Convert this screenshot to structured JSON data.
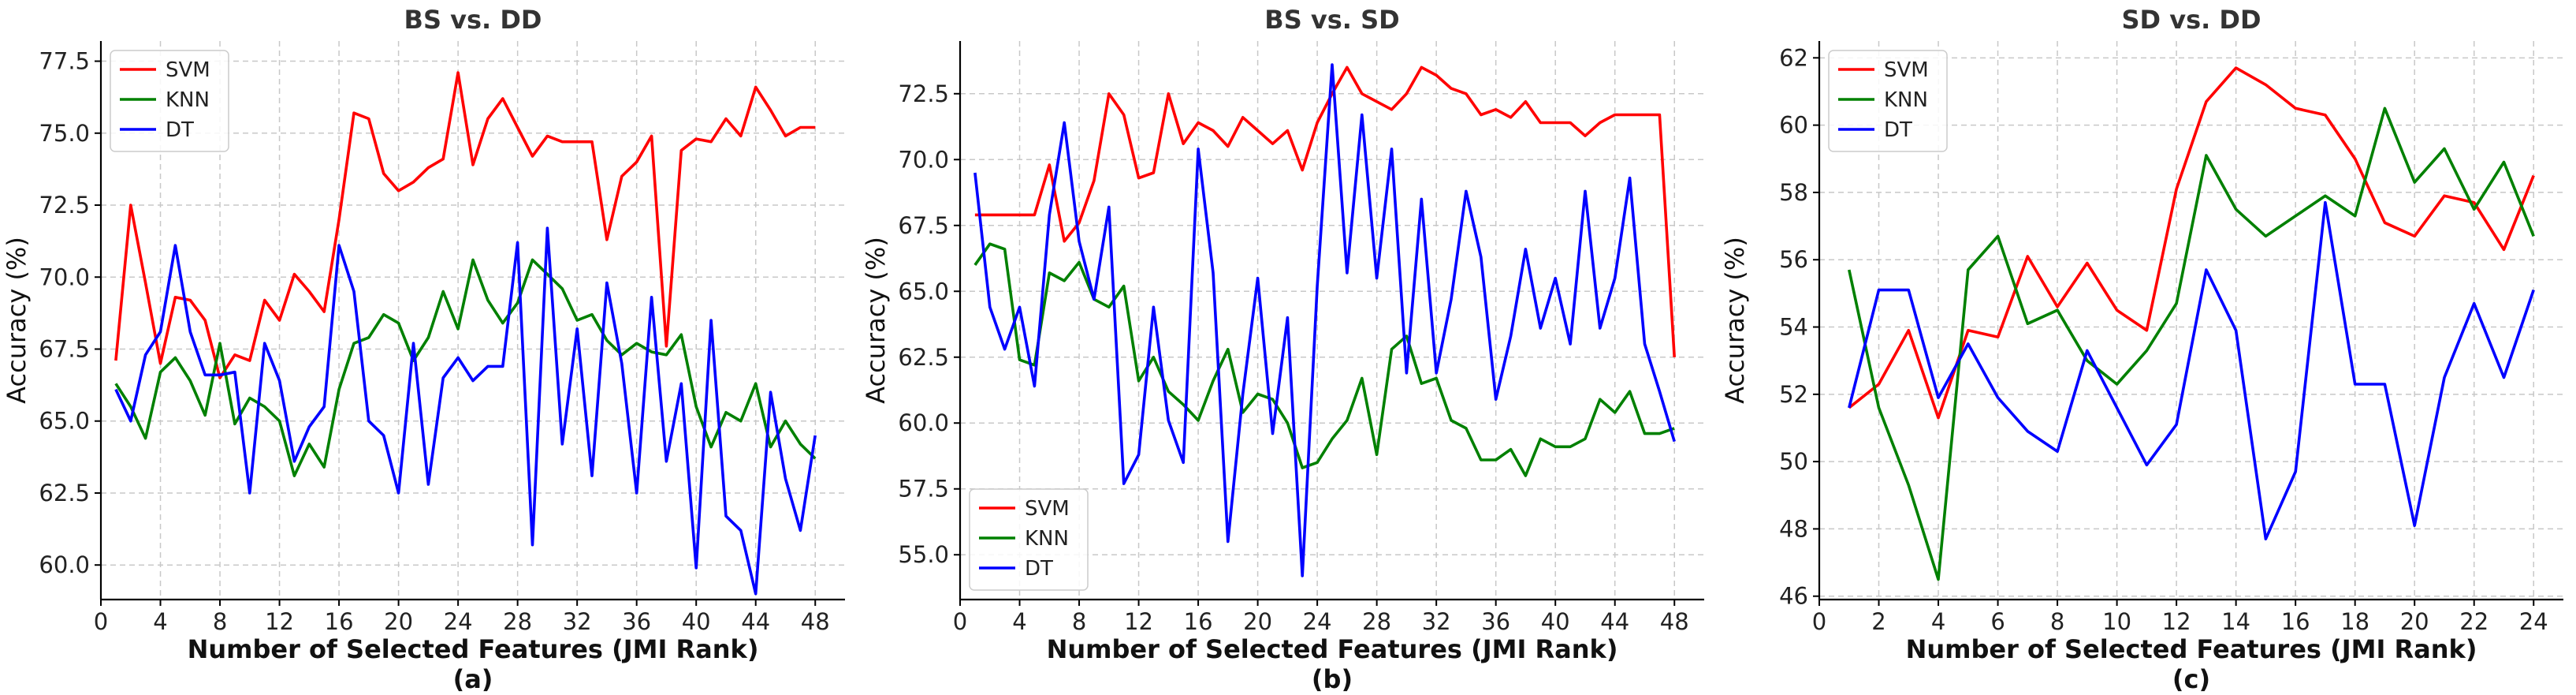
{
  "chart_data": [
    {
      "type": "line",
      "title": "BS vs. DD",
      "xlabel": "Number of Selected Features (JMI Rank)",
      "sublabel": "(a)",
      "ylabel": "Accuracy (%)",
      "xlim": [
        0,
        50
      ],
      "ylim": [
        58.8,
        78.2
      ],
      "xticks": [
        0,
        4,
        8,
        12,
        16,
        20,
        24,
        28,
        32,
        36,
        40,
        44,
        48
      ],
      "xtick_labels": [
        "0",
        "4",
        "8",
        "12",
        "16",
        "20",
        "24",
        "28",
        "32",
        "36",
        "40",
        "44",
        "48"
      ],
      "yticks": [
        60.0,
        62.5,
        65.0,
        67.5,
        70.0,
        72.5,
        75.0,
        77.5
      ],
      "ytick_labels": [
        "60.0",
        "62.5",
        "65.0",
        "67.5",
        "70.0",
        "72.5",
        "75.0",
        "77.5"
      ],
      "legend_position": "top-left",
      "x": [
        1,
        2,
        3,
        4,
        5,
        6,
        7,
        8,
        9,
        10,
        11,
        12,
        13,
        14,
        15,
        16,
        17,
        18,
        19,
        20,
        21,
        22,
        23,
        24,
        25,
        26,
        27,
        28,
        29,
        30,
        31,
        32,
        33,
        34,
        35,
        36,
        37,
        38,
        39,
        40,
        41,
        42,
        43,
        44,
        45,
        46,
        47,
        48
      ],
      "series": [
        {
          "name": "SVM",
          "color": "#ff0000",
          "values": [
            67.1,
            72.5,
            69.8,
            67.0,
            69.3,
            69.2,
            68.5,
            66.5,
            67.3,
            67.1,
            69.2,
            68.5,
            70.1,
            69.5,
            68.8,
            72.0,
            75.7,
            75.5,
            73.6,
            73.0,
            73.3,
            73.8,
            74.1,
            77.1,
            73.9,
            75.5,
            76.2,
            75.2,
            74.2,
            74.9,
            74.7,
            74.7,
            74.7,
            71.3,
            73.5,
            74.0,
            74.9,
            67.6,
            74.4,
            74.8,
            74.7,
            75.5,
            74.9,
            76.6,
            75.8,
            74.9,
            75.2,
            75.2
          ]
        },
        {
          "name": "KNN",
          "color": "#008000",
          "values": [
            66.3,
            65.5,
            64.4,
            66.7,
            67.2,
            66.4,
            65.2,
            67.7,
            64.9,
            65.8,
            65.5,
            65.0,
            63.1,
            64.2,
            63.4,
            66.1,
            67.7,
            67.9,
            68.7,
            68.4,
            67.1,
            67.9,
            69.5,
            68.2,
            70.6,
            69.2,
            68.4,
            69.1,
            70.6,
            70.1,
            69.6,
            68.5,
            68.7,
            67.8,
            67.3,
            67.7,
            67.4,
            67.3,
            68.0,
            65.5,
            64.1,
            65.3,
            65.0,
            66.3,
            64.1,
            65.0,
            64.2,
            63.7
          ]
        },
        {
          "name": "DT",
          "color": "#0000ff",
          "values": [
            66.1,
            65.0,
            67.3,
            68.1,
            71.1,
            68.1,
            66.6,
            66.6,
            66.7,
            62.5,
            67.7,
            66.4,
            63.6,
            64.8,
            65.5,
            71.1,
            69.5,
            65.0,
            64.5,
            62.5,
            67.7,
            62.8,
            66.5,
            67.2,
            66.4,
            66.9,
            66.9,
            71.2,
            60.7,
            71.7,
            64.2,
            68.2,
            63.1,
            69.8,
            67.0,
            62.5,
            69.3,
            63.6,
            66.3,
            59.9,
            68.5,
            61.7,
            61.2,
            59.0,
            66.0,
            63.0,
            61.2,
            64.5
          ]
        }
      ]
    },
    {
      "type": "line",
      "title": "BS vs. SD",
      "xlabel": "Number of Selected Features (JMI Rank)",
      "sublabel": "(b)",
      "ylabel": "Accuracy (%)",
      "xlim": [
        0,
        50
      ],
      "ylim": [
        53.3,
        74.5
      ],
      "xticks": [
        0,
        4,
        8,
        12,
        16,
        20,
        24,
        28,
        32,
        36,
        40,
        44,
        48
      ],
      "xtick_labels": [
        "0",
        "4",
        "8",
        "12",
        "16",
        "20",
        "24",
        "28",
        "32",
        "36",
        "40",
        "44",
        "48"
      ],
      "yticks": [
        55.0,
        57.5,
        60.0,
        62.5,
        65.0,
        67.5,
        70.0,
        72.5
      ],
      "ytick_labels": [
        "55.0",
        "57.5",
        "60.0",
        "62.5",
        "65.0",
        "67.5",
        "70.0",
        "72.5"
      ],
      "legend_position": "bottom-left",
      "x": [
        1,
        2,
        3,
        4,
        5,
        6,
        7,
        8,
        9,
        10,
        11,
        12,
        13,
        14,
        15,
        16,
        17,
        18,
        19,
        20,
        21,
        22,
        23,
        24,
        25,
        26,
        27,
        28,
        29,
        30,
        31,
        32,
        33,
        34,
        35,
        36,
        37,
        38,
        39,
        40,
        41,
        42,
        43,
        44,
        45,
        46,
        47,
        48
      ],
      "series": [
        {
          "name": "SVM",
          "color": "#ff0000",
          "values": [
            67.9,
            67.9,
            67.9,
            67.9,
            67.9,
            69.8,
            66.9,
            67.6,
            69.2,
            72.5,
            71.7,
            69.3,
            69.5,
            72.5,
            70.6,
            71.4,
            71.1,
            70.5,
            71.6,
            71.1,
            70.6,
            71.1,
            69.6,
            71.4,
            72.5,
            73.5,
            72.5,
            72.2,
            71.9,
            72.5,
            73.5,
            73.2,
            72.7,
            72.5,
            71.7,
            71.9,
            71.6,
            72.2,
            71.4,
            71.4,
            71.4,
            70.9,
            71.4,
            71.7,
            71.7,
            71.7,
            71.7,
            62.5
          ]
        },
        {
          "name": "KNN",
          "color": "#008000",
          "values": [
            66.0,
            66.8,
            66.6,
            62.4,
            62.2,
            65.7,
            65.4,
            66.1,
            64.7,
            64.4,
            65.2,
            61.6,
            62.5,
            61.2,
            60.7,
            60.1,
            61.6,
            62.8,
            60.4,
            61.1,
            60.9,
            60.0,
            58.3,
            58.5,
            59.4,
            60.1,
            61.7,
            58.8,
            62.8,
            63.3,
            61.5,
            61.7,
            60.1,
            59.8,
            58.6,
            58.6,
            59.0,
            58.0,
            59.4,
            59.1,
            59.1,
            59.4,
            60.9,
            60.4,
            61.2,
            59.6,
            59.6,
            59.8
          ]
        },
        {
          "name": "DT",
          "color": "#0000ff",
          "values": [
            69.5,
            64.4,
            62.8,
            64.4,
            61.4,
            67.9,
            71.4,
            66.9,
            64.7,
            68.2,
            57.7,
            58.8,
            64.4,
            60.1,
            58.5,
            70.4,
            65.7,
            55.5,
            61.1,
            65.5,
            59.6,
            64.0,
            54.2,
            65.2,
            73.6,
            65.7,
            71.7,
            65.5,
            70.4,
            61.9,
            68.5,
            61.9,
            64.7,
            68.8,
            66.3,
            60.9,
            63.3,
            66.6,
            63.6,
            65.5,
            63.0,
            68.8,
            63.6,
            65.5,
            69.3,
            63.0,
            61.2,
            59.3
          ]
        }
      ]
    },
    {
      "type": "line",
      "title": "SD vs. DD",
      "xlabel": "Number of Selected Features (JMI Rank)",
      "sublabel": "(c)",
      "ylabel": "Accuracy (%)",
      "xlim": [
        0,
        25
      ],
      "ylim": [
        45.9,
        62.5
      ],
      "xticks": [
        0,
        2,
        4,
        6,
        8,
        10,
        12,
        14,
        16,
        18,
        20,
        22,
        24
      ],
      "xtick_labels": [
        "0",
        "2",
        "4",
        "6",
        "8",
        "10",
        "12",
        "14",
        "16",
        "18",
        "20",
        "22",
        "24"
      ],
      "yticks": [
        46,
        48,
        50,
        52,
        54,
        56,
        58,
        60,
        62
      ],
      "ytick_labels": [
        "46",
        "48",
        "50",
        "52",
        "54",
        "56",
        "58",
        "60",
        "62"
      ],
      "legend_position": "top-left",
      "x": [
        1,
        2,
        3,
        4,
        5,
        6,
        7,
        8,
        9,
        10,
        11,
        12,
        13,
        14,
        15,
        16,
        17,
        18,
        19,
        20,
        21,
        22,
        23,
        24
      ],
      "series": [
        {
          "name": "SVM",
          "color": "#ff0000",
          "values": [
            51.6,
            52.3,
            53.9,
            51.3,
            53.9,
            53.7,
            56.1,
            54.6,
            55.9,
            54.5,
            53.9,
            58.1,
            60.7,
            61.7,
            61.2,
            60.5,
            60.3,
            59.0,
            57.1,
            56.7,
            57.9,
            57.7,
            56.3,
            58.5
          ]
        },
        {
          "name": "KNN",
          "color": "#008000",
          "values": [
            55.7,
            51.6,
            49.3,
            46.5,
            55.7,
            56.7,
            54.1,
            54.5,
            53.0,
            52.3,
            53.3,
            54.7,
            59.1,
            57.5,
            56.7,
            57.3,
            57.9,
            57.3,
            60.5,
            58.3,
            59.3,
            57.5,
            58.9,
            56.7
          ]
        },
        {
          "name": "DT",
          "color": "#0000ff",
          "values": [
            51.6,
            55.1,
            55.1,
            51.9,
            53.5,
            51.9,
            50.9,
            50.3,
            53.3,
            51.6,
            49.9,
            51.1,
            55.7,
            53.9,
            47.7,
            49.7,
            57.7,
            52.3,
            52.3,
            48.1,
            52.5,
            54.7,
            52.5,
            55.1
          ]
        }
      ]
    }
  ]
}
